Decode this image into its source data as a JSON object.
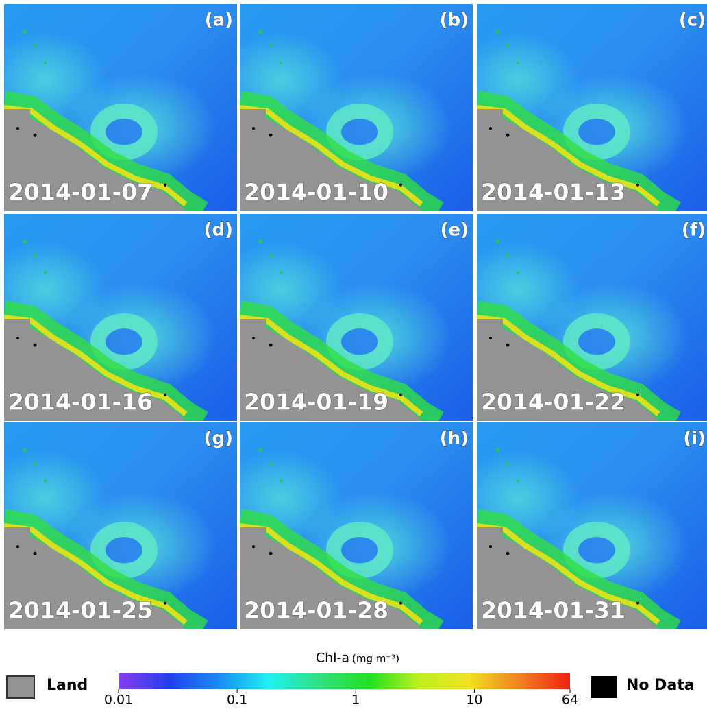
{
  "panels": [
    {
      "label": "(a)",
      "date": "2014-01-07"
    },
    {
      "label": "(b)",
      "date": "2014-01-10"
    },
    {
      "label": "(c)",
      "date": "2014-01-13"
    },
    {
      "label": "(d)",
      "date": "2014-01-16"
    },
    {
      "label": "(e)",
      "date": "2014-01-19"
    },
    {
      "label": "(f)",
      "date": "2014-01-22"
    },
    {
      "label": "(g)",
      "date": "2014-01-25"
    },
    {
      "label": "(h)",
      "date": "2014-01-28"
    },
    {
      "label": "(i)",
      "date": "2014-01-31"
    }
  ],
  "colorbar": {
    "title": "Chl-a",
    "unit": "(mg m⁻³)",
    "lim": [
      0.01,
      64
    ],
    "log": true,
    "ticks": [
      0.01,
      0.1,
      1,
      10,
      64
    ],
    "colors": [
      "#8a3cf0",
      "#2040f0",
      "#1a8cf5",
      "#20f0f0",
      "#30e080",
      "#20e020",
      "#c0f020",
      "#f0e020",
      "#f08020",
      "#f02010"
    ]
  },
  "legend": {
    "land": "Land",
    "no_data": "No Data"
  }
}
